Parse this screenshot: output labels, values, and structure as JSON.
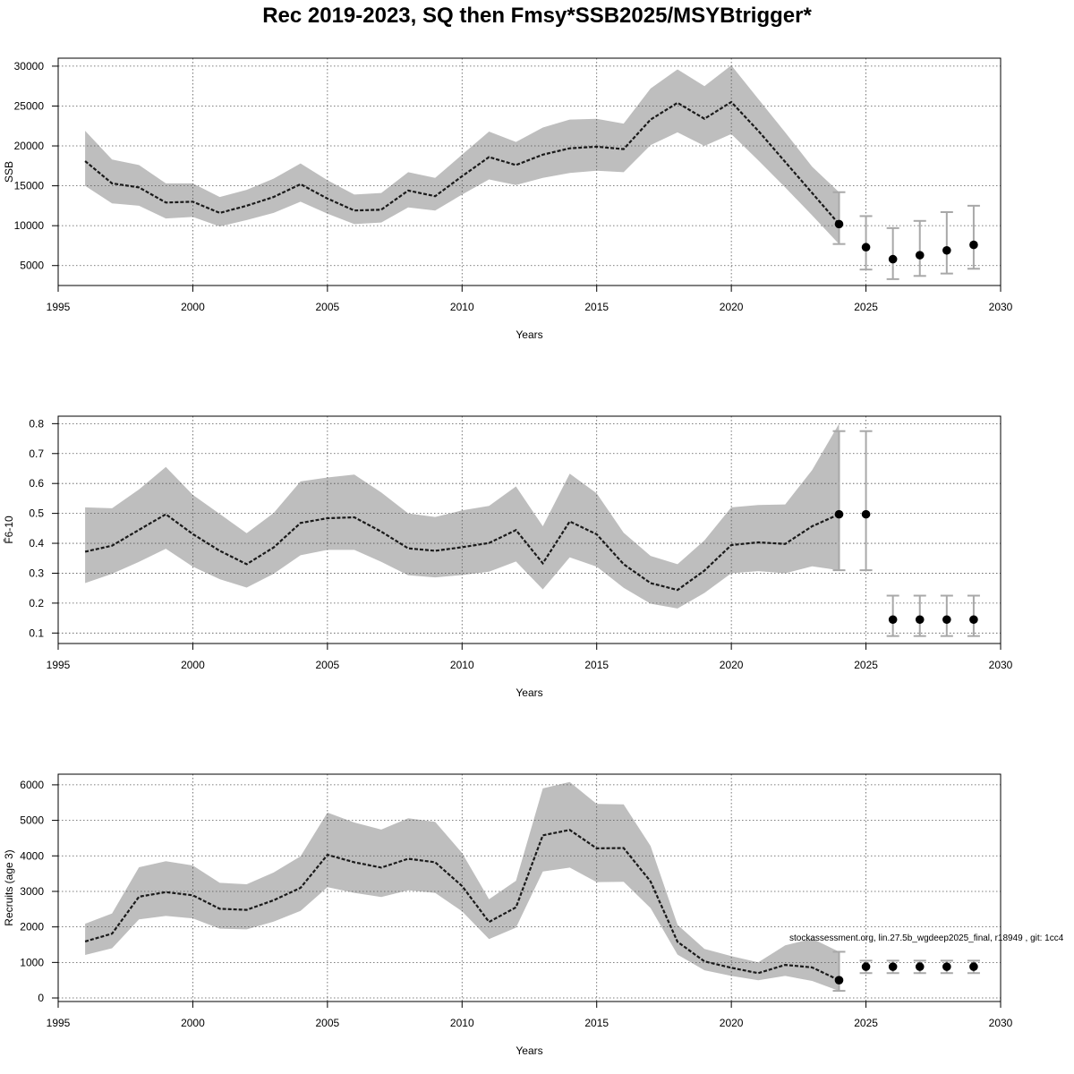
{
  "title": "Rec 2019-2023, SQ then Fmsy*SSB2025/MSYBtrigger*",
  "footnote": "stockassessment.org, lin.27.5b_wgdeep2025_final, r18949 , git: 1cc4",
  "chart_data": [
    {
      "type": "line",
      "xlabel": "Years",
      "ylabel": "SSB",
      "xlim": [
        1995,
        2030
      ],
      "ylim": [
        2500,
        31000
      ],
      "xticks": [
        1995,
        2000,
        2005,
        2010,
        2015,
        2020,
        2025,
        2030
      ],
      "yticks": [
        5000,
        10000,
        15000,
        20000,
        25000,
        30000
      ],
      "grid": true,
      "years": [
        1996,
        1997,
        1998,
        1999,
        2000,
        2001,
        2002,
        2003,
        2004,
        2005,
        2006,
        2007,
        2008,
        2009,
        2010,
        2011,
        2012,
        2013,
        2014,
        2015,
        2016,
        2017,
        2018,
        2019,
        2020,
        2021,
        2022,
        2023,
        2024
      ],
      "estimate": [
        18100,
        15300,
        14800,
        12900,
        13000,
        11600,
        12500,
        13600,
        15200,
        13400,
        11900,
        12000,
        14400,
        13700,
        16200,
        18600,
        17600,
        18900,
        19700,
        19900,
        19600,
        23300,
        25400,
        23400,
        25500,
        21900,
        18000,
        14100,
        10200
      ],
      "lower": [
        15000,
        12800,
        12500,
        10900,
        11100,
        9900,
        10700,
        11600,
        13000,
        11500,
        10200,
        10400,
        12300,
        11900,
        13900,
        15800,
        15100,
        16000,
        16600,
        16900,
        16700,
        20100,
        21700,
        20000,
        21500,
        18200,
        14800,
        11300,
        7700
      ],
      "upper": [
        21900,
        18300,
        17600,
        15300,
        15300,
        13600,
        14500,
        15900,
        17800,
        15700,
        13900,
        14100,
        16700,
        16000,
        18900,
        21800,
        20500,
        22300,
        23300,
        23400,
        22800,
        27200,
        29600,
        27500,
        30100,
        25900,
        21700,
        17400,
        14200
      ],
      "forecast": [
        {
          "year": 2024,
          "value": 10200,
          "lower": 7700,
          "upper": 14200
        },
        {
          "year": 2025,
          "value": 7300,
          "lower": 4500,
          "upper": 11200
        },
        {
          "year": 2026,
          "value": 5800,
          "lower": 3300,
          "upper": 9700
        },
        {
          "year": 2027,
          "value": 6300,
          "lower": 3700,
          "upper": 10600
        },
        {
          "year": 2028,
          "value": 6900,
          "lower": 4000,
          "upper": 11700
        },
        {
          "year": 2029,
          "value": 7600,
          "lower": 4600,
          "upper": 12500
        }
      ]
    },
    {
      "type": "line",
      "xlabel": "Years",
      "ylabel": "F̄6-10",
      "xlim": [
        1995,
        2030
      ],
      "ylim": [
        0.065,
        0.825
      ],
      "xticks": [
        1995,
        2000,
        2005,
        2010,
        2015,
        2020,
        2025,
        2030
      ],
      "yticks": [
        0.1,
        0.2,
        0.3,
        0.4,
        0.5,
        0.6,
        0.7,
        0.8
      ],
      "grid": true,
      "years": [
        1996,
        1997,
        1998,
        1999,
        2000,
        2001,
        2002,
        2003,
        2004,
        2005,
        2006,
        2007,
        2008,
        2009,
        2010,
        2011,
        2012,
        2013,
        2014,
        2015,
        2016,
        2017,
        2018,
        2019,
        2020,
        2021,
        2022,
        2023,
        2024
      ],
      "estimate": [
        0.372,
        0.392,
        0.445,
        0.497,
        0.431,
        0.375,
        0.33,
        0.386,
        0.468,
        0.484,
        0.487,
        0.439,
        0.383,
        0.375,
        0.387,
        0.401,
        0.444,
        0.333,
        0.473,
        0.43,
        0.33,
        0.267,
        0.244,
        0.309,
        0.394,
        0.403,
        0.398,
        0.457,
        0.497
      ],
      "lower": [
        0.267,
        0.298,
        0.338,
        0.382,
        0.322,
        0.28,
        0.252,
        0.298,
        0.36,
        0.378,
        0.378,
        0.338,
        0.293,
        0.286,
        0.294,
        0.305,
        0.339,
        0.246,
        0.353,
        0.322,
        0.251,
        0.198,
        0.182,
        0.234,
        0.3,
        0.307,
        0.3,
        0.323,
        0.31
      ],
      "upper": [
        0.52,
        0.517,
        0.58,
        0.655,
        0.562,
        0.498,
        0.434,
        0.501,
        0.607,
        0.62,
        0.63,
        0.57,
        0.5,
        0.488,
        0.51,
        0.525,
        0.59,
        0.457,
        0.633,
        0.567,
        0.435,
        0.358,
        0.33,
        0.41,
        0.52,
        0.528,
        0.53,
        0.645,
        0.8
      ],
      "forecast": [
        {
          "year": 2024,
          "value": 0.497,
          "lower": 0.31,
          "upper": 0.775
        },
        {
          "year": 2025,
          "value": 0.497,
          "lower": 0.31,
          "upper": 0.775
        },
        {
          "year": 2026,
          "value": 0.145,
          "lower": 0.09,
          "upper": 0.225
        },
        {
          "year": 2027,
          "value": 0.145,
          "lower": 0.09,
          "upper": 0.225
        },
        {
          "year": 2028,
          "value": 0.145,
          "lower": 0.09,
          "upper": 0.225
        },
        {
          "year": 2029,
          "value": 0.145,
          "lower": 0.09,
          "upper": 0.225
        }
      ]
    },
    {
      "type": "line",
      "xlabel": "Years",
      "ylabel": "Recruits (age 3)",
      "xlim": [
        1995,
        2030
      ],
      "ylim": [
        -100,
        6300
      ],
      "xticks": [
        1995,
        2000,
        2005,
        2010,
        2015,
        2020,
        2025,
        2030
      ],
      "yticks": [
        0,
        1000,
        2000,
        3000,
        4000,
        5000,
        6000
      ],
      "grid": true,
      "years": [
        1996,
        1997,
        1998,
        1999,
        2000,
        2001,
        2002,
        2003,
        2004,
        2005,
        2006,
        2007,
        2008,
        2009,
        2010,
        2011,
        2012,
        2013,
        2014,
        2015,
        2016,
        2017,
        2018,
        2019,
        2020,
        2021,
        2022,
        2023,
        2024
      ],
      "estimate": [
        1590,
        1810,
        2850,
        2980,
        2890,
        2510,
        2480,
        2750,
        3100,
        4030,
        3820,
        3670,
        3920,
        3820,
        3150,
        2140,
        2550,
        4580,
        4730,
        4210,
        4220,
        3280,
        1580,
        1030,
        850,
        700,
        930,
        860,
        500
      ],
      "lower": [
        1210,
        1400,
        2210,
        2310,
        2240,
        1950,
        1930,
        2150,
        2450,
        3120,
        2960,
        2840,
        3030,
        2960,
        2440,
        1660,
        1980,
        3560,
        3670,
        3260,
        3270,
        2530,
        1220,
        780,
        620,
        500,
        620,
        480,
        200
      ],
      "upper": [
        2090,
        2380,
        3680,
        3850,
        3730,
        3240,
        3200,
        3530,
        3990,
        5220,
        4940,
        4740,
        5060,
        4960,
        4080,
        2780,
        3300,
        5900,
        6080,
        5460,
        5450,
        4280,
        2060,
        1380,
        1180,
        1000,
        1480,
        1670,
        1300
      ],
      "forecast": [
        {
          "year": 2024,
          "value": 500,
          "lower": 200,
          "upper": 1300
        },
        {
          "year": 2025,
          "value": 880,
          "lower": 700,
          "upper": 1050
        },
        {
          "year": 2026,
          "value": 880,
          "lower": 700,
          "upper": 1050
        },
        {
          "year": 2027,
          "value": 880,
          "lower": 700,
          "upper": 1050
        },
        {
          "year": 2028,
          "value": 880,
          "lower": 700,
          "upper": 1050
        },
        {
          "year": 2029,
          "value": 880,
          "lower": 700,
          "upper": 1050
        }
      ]
    }
  ]
}
